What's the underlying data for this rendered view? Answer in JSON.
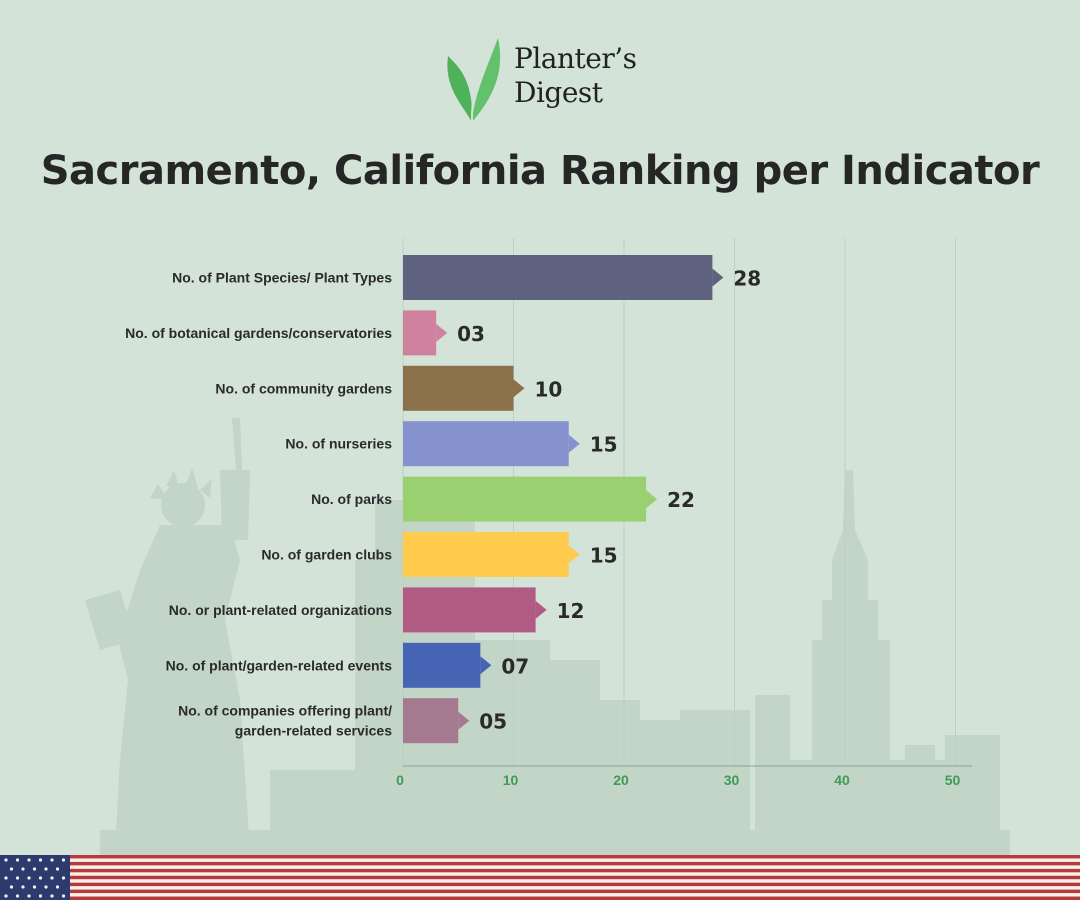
{
  "brand": {
    "name_line1": "Planter’s",
    "name_line2": "Digest",
    "leaf_color": "#4fb25a"
  },
  "title": "Sacramento, California Ranking per Indicator",
  "colors": {
    "background": "#d3e3d8",
    "skyline": "#c2d4c6",
    "gridline": "#bccfc2",
    "axis_tick_text": "#3f9a56",
    "label_text": "#2a2a2a"
  },
  "chart_data": {
    "type": "bar",
    "orientation": "horizontal",
    "categories": [
      [
        "No. of Plant Species/ Plant Types"
      ],
      [
        "No. of botanical gardens/conservatories"
      ],
      [
        "No. of community gardens"
      ],
      [
        "No. of nurseries"
      ],
      [
        "No. of parks"
      ],
      [
        "No. of garden clubs"
      ],
      [
        "No. or plant-related organizations"
      ],
      [
        "No. of plant/garden-related events"
      ],
      [
        "No. of companies offering plant/",
        "garden-related services"
      ]
    ],
    "values": [
      28,
      3,
      10,
      15,
      22,
      15,
      12,
      7,
      5
    ],
    "data_labels": [
      "28",
      "03",
      "10",
      "15",
      "22",
      "15",
      "12",
      "07",
      "05"
    ],
    "bar_colors": [
      "#5f627e",
      "#cf819e",
      "#8b714a",
      "#8592cd",
      "#9ad06f",
      "#ffcc4d",
      "#b05a84",
      "#4865b5",
      "#a57a91"
    ],
    "x_ticks": [
      "0",
      "10",
      "20",
      "30",
      "40",
      "50"
    ],
    "xlim": [
      0,
      52
    ],
    "grid": true
  }
}
